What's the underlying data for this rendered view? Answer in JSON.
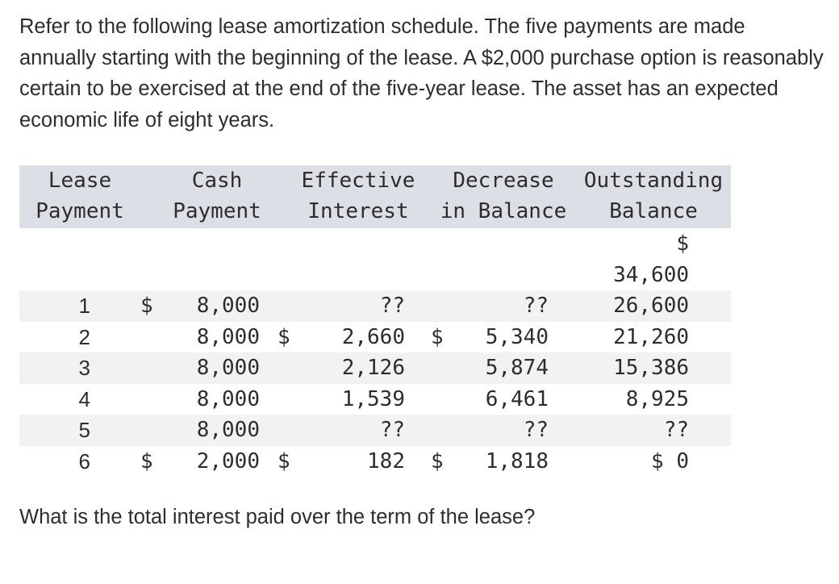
{
  "intro": "Refer to the following lease amortization schedule. The five payments are made annually starting with the beginning of the lease. A $2,000 purchase option is reasonably certain to be exercised at the end of the five-year lease. The asset has an expected economic life of eight years.",
  "table": {
    "headers": {
      "lease_payment": [
        "Lease",
        "Payment"
      ],
      "cash_payment": [
        "Cash",
        "Payment"
      ],
      "effective_interest": [
        "Effective",
        "Interest"
      ],
      "decrease_in_balance": [
        "Decrease",
        "in Balance"
      ],
      "outstanding_balance": [
        "Outstanding",
        "Balance"
      ]
    },
    "initial_balance": {
      "symbol": "$",
      "value": "34,600"
    },
    "rows": [
      {
        "n": "1",
        "cash_sym": "$",
        "cash": "8,000",
        "int_sym": "",
        "interest": "??",
        "dec_sym": "",
        "decrease": "??",
        "bal_sym": "",
        "balance": "26,600"
      },
      {
        "n": "2",
        "cash_sym": "",
        "cash": "8,000",
        "int_sym": "$",
        "interest": "2,660",
        "dec_sym": "$",
        "decrease": "5,340",
        "bal_sym": "",
        "balance": "21,260"
      },
      {
        "n": "3",
        "cash_sym": "",
        "cash": "8,000",
        "int_sym": "",
        "interest": "2,126",
        "dec_sym": "",
        "decrease": "5,874",
        "bal_sym": "",
        "balance": "15,386"
      },
      {
        "n": "4",
        "cash_sym": "",
        "cash": "8,000",
        "int_sym": "",
        "interest": "1,539",
        "dec_sym": "",
        "decrease": "6,461",
        "bal_sym": "",
        "balance": "8,925"
      },
      {
        "n": "5",
        "cash_sym": "",
        "cash": "8,000",
        "int_sym": "",
        "interest": "??",
        "dec_sym": "",
        "decrease": "??",
        "bal_sym": "",
        "balance": "??"
      },
      {
        "n": "6",
        "cash_sym": "$",
        "cash": "2,000",
        "int_sym": "$",
        "interest": "182",
        "dec_sym": "$",
        "decrease": "1,818",
        "bal_sym": "$",
        "balance": "0"
      }
    ]
  },
  "question": "What is the total interest paid over the term of the lease?"
}
